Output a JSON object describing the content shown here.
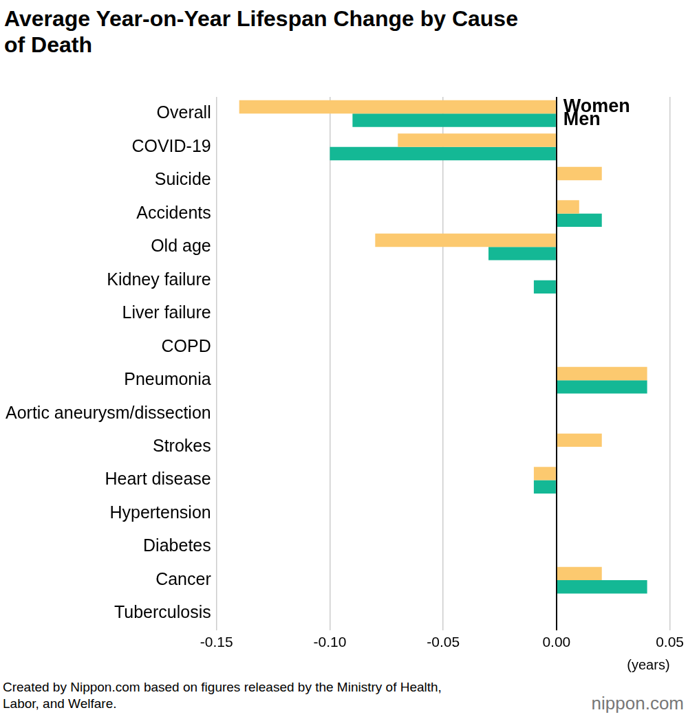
{
  "chart_data": {
    "type": "bar",
    "orientation": "horizontal",
    "title": "Average Year-on-Year Lifespan Change by Cause of Death",
    "xlabel": "(years)",
    "source": "Created by Nippon.com based on figures released by the Ministry of Health, Labor, and Welfare.",
    "credit": "nippon.com",
    "categories": [
      "Overall",
      "COVID-19",
      "Suicide",
      "Accidents",
      "Old age",
      "Kidney failure",
      "Liver failure",
      "COPD",
      "Pneumonia",
      "Aortic aneurysm/dissection",
      "Strokes",
      "Heart disease",
      "Hypertension",
      "Diabetes",
      "Cancer",
      "Tuberculosis"
    ],
    "series": [
      {
        "name": "Women",
        "color": "#fcc96f",
        "values": [
          -0.14,
          -0.07,
          0.02,
          0.01,
          -0.08,
          0,
          0,
          0,
          0.04,
          0,
          0.02,
          -0.01,
          0,
          0,
          0.02,
          0
        ]
      },
      {
        "name": "Men",
        "color": "#14b895",
        "values": [
          -0.09,
          -0.1,
          0,
          0.02,
          -0.03,
          -0.01,
          0,
          0,
          0.04,
          0,
          0,
          -0.01,
          0,
          0,
          0.04,
          0
        ]
      }
    ],
    "xlim": [
      -0.15,
      0.05
    ],
    "xticks": [
      -0.15,
      {
        "value": -0.1,
        "label": "-0.10"
      },
      -0.05,
      {
        "value": 0,
        "label": "0.00"
      },
      0.05
    ],
    "grid": true,
    "legend": "top-right"
  }
}
